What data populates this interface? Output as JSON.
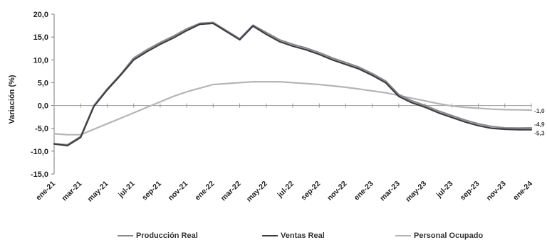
{
  "chart_data": {
    "type": "line",
    "title": "",
    "xlabel": "",
    "ylabel": "Variación (%)",
    "ylim": [
      -15,
      20
    ],
    "yticks": [
      "20,0",
      "15,0",
      "10,0",
      "5,0",
      "0,0",
      "-5,0",
      "-10,0",
      "-15,0"
    ],
    "ytick_values": [
      20,
      15,
      10,
      5,
      0,
      -5,
      -10,
      -15
    ],
    "x_tick_labels": [
      "ene-21",
      "mar-21",
      "may-21",
      "jul-21",
      "sep-21",
      "nov-21",
      "ene-22",
      "mar-22",
      "may-22",
      "jul-22",
      "sep-22",
      "nov-22",
      "ene-23",
      "mar-23",
      "may-23",
      "jul-23",
      "sep-23",
      "nov-23",
      "ene-24"
    ],
    "x": [
      "ene-21",
      "feb-21",
      "mar-21",
      "abr-21",
      "may-21",
      "jun-21",
      "jul-21",
      "ago-21",
      "sep-21",
      "oct-21",
      "nov-21",
      "dic-21",
      "ene-22",
      "feb-22",
      "mar-22",
      "abr-22",
      "may-22",
      "jun-22",
      "jul-22",
      "ago-22",
      "sep-22",
      "oct-22",
      "nov-22",
      "dic-22",
      "ene-23",
      "feb-23",
      "mar-23",
      "abr-23",
      "may-23",
      "jun-23",
      "jul-23",
      "ago-23",
      "sep-23",
      "oct-23",
      "nov-23",
      "dic-23",
      "ene-24"
    ],
    "series": [
      {
        "name": "Producción Real",
        "color": "#8a8a8a",
        "values": [
          -8.4,
          -8.6,
          -6.8,
          0.0,
          3.6,
          6.8,
          10.4,
          12.2,
          13.8,
          15.2,
          16.8,
          18.0,
          18.2,
          16.4,
          14.6,
          17.6,
          16.0,
          14.4,
          13.4,
          12.6,
          11.6,
          10.4,
          9.4,
          8.4,
          7.0,
          5.4,
          2.4,
          1.0,
          0.0,
          -1.2,
          -2.2,
          -3.2,
          -4.0,
          -4.6,
          -4.9,
          -4.95,
          -4.9
        ],
        "end_label": "-4,9"
      },
      {
        "name": "Ventas Real",
        "color": "#3d3d45",
        "values": [
          -8.4,
          -8.8,
          -7.0,
          -0.2,
          3.4,
          6.6,
          10.0,
          11.8,
          13.4,
          14.8,
          16.4,
          17.8,
          18.0,
          16.2,
          14.4,
          17.4,
          15.6,
          14.0,
          13.0,
          12.2,
          11.2,
          10.0,
          9.0,
          8.0,
          6.6,
          5.0,
          2.0,
          0.6,
          -0.4,
          -1.6,
          -2.6,
          -3.6,
          -4.4,
          -5.0,
          -5.2,
          -5.3,
          -5.3
        ],
        "end_label": "-5,3"
      },
      {
        "name": "Personal Ocupado",
        "color": "#b5b5b5",
        "values": [
          -6.2,
          -6.4,
          -6.4,
          -5.2,
          -4.0,
          -2.8,
          -1.6,
          -0.4,
          0.8,
          2.0,
          3.0,
          3.8,
          4.6,
          4.8,
          5.0,
          5.2,
          5.2,
          5.2,
          5.0,
          4.8,
          4.6,
          4.3,
          4.0,
          3.6,
          3.2,
          2.8,
          2.2,
          1.6,
          1.0,
          0.4,
          -0.1,
          -0.4,
          -0.6,
          -0.8,
          -0.9,
          -0.95,
          -1.0
        ],
        "end_label": "-1,0"
      }
    ],
    "grid": false,
    "legend_position": "bottom"
  }
}
